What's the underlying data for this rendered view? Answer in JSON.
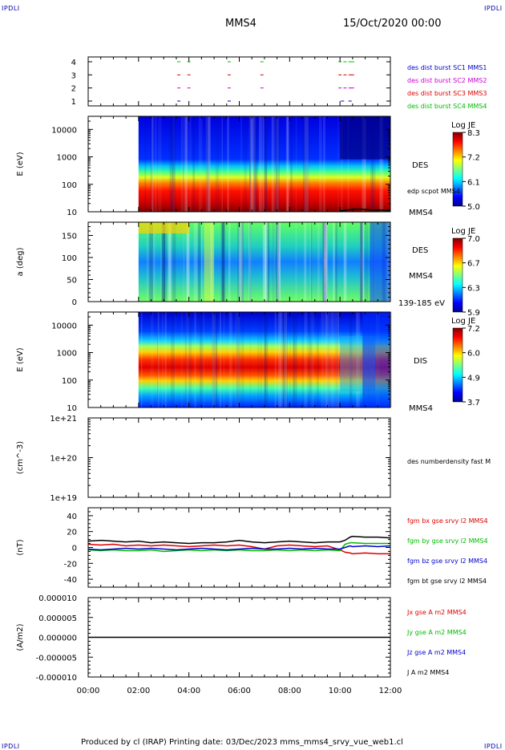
{
  "header": {
    "corner_label": "IPDLI",
    "spacecraft": "MMS4",
    "datetime": "15/Oct/2020 00:00"
  },
  "footer": {
    "text": "Produced by cl (IRAP)   Printing date: 03/Dec/2023   mms_mms4_srvy_vue_web1.cl"
  },
  "colors": {
    "blue": "#0000cc",
    "magenta": "#cc00cc",
    "red": "#dd0000",
    "green": "#00bb00",
    "black": "#000000"
  },
  "chart_data": [
    {
      "type": "scatter",
      "panel": "burst",
      "yticks": [
        "4",
        "3",
        "2",
        "1"
      ],
      "legend": [
        {
          "text": "des dist burst SC1 MMS1",
          "color": "#0000cc"
        },
        {
          "text": "des dist burst SC2 MMS2",
          "color": "#cc00cc"
        },
        {
          "text": "des dist burst SC3 MMS3",
          "color": "#dd0000"
        },
        {
          "text": "des dist burst SC4 MMS4",
          "color": "#00bb00"
        }
      ],
      "series": [
        {
          "level": 4,
          "color": "#00bb00",
          "x": [
            3.6,
            4.0,
            5.6,
            6.9,
            10.0,
            10.2,
            10.4,
            10.5
          ]
        },
        {
          "level": 3,
          "color": "#dd0000",
          "x": [
            3.6,
            4.0,
            5.6,
            6.9,
            10.0,
            10.2,
            10.4,
            10.5
          ]
        },
        {
          "level": 2,
          "color": "#cc00cc",
          "x": [
            3.6,
            4.0,
            5.6,
            6.9,
            10.0,
            10.2,
            10.4,
            10.5
          ]
        },
        {
          "level": 1,
          "color": "#0000cc",
          "x": [
            3.6,
            5.6,
            10.1,
            10.4
          ]
        }
      ]
    },
    {
      "type": "heatmap",
      "panel": "des-energy",
      "ylabel": "E (eV)",
      "yscale": "log",
      "ylim": [
        10,
        30000
      ],
      "yticks": [
        "10000",
        "1000",
        "100",
        "10"
      ],
      "colorbar": {
        "title": "Log JE",
        "ticks": [
          "8.3",
          "7.2",
          "6.1",
          "5.0"
        ]
      },
      "instrument_label": "DES",
      "extra_label": "edp scpot MMS4",
      "sc_label": "MMS4",
      "data_start": 2.0
    },
    {
      "type": "heatmap",
      "panel": "pitch-angle",
      "ylabel": "a (deg)",
      "ylim": [
        0,
        180
      ],
      "yticks": [
        "150",
        "100",
        "50",
        "0"
      ],
      "colorbar": {
        "title": "Log JE",
        "ticks": [
          "7.0",
          "6.7",
          "6.3",
          "5.9"
        ]
      },
      "instrument_label": "DES",
      "sc_label": "MMS4",
      "energy_label": "139-185 eV",
      "data_start": 2.0
    },
    {
      "type": "heatmap",
      "panel": "dis-energy",
      "ylabel": "E (eV)",
      "yscale": "log",
      "ylim": [
        10,
        30000
      ],
      "yticks": [
        "10000",
        "1000",
        "100",
        "10"
      ],
      "colorbar": {
        "title": "Log JE",
        "ticks": [
          "7.2",
          "6.0",
          "4.9",
          "3.7"
        ]
      },
      "instrument_label": "DIS",
      "sc_label": "MMS4",
      "data_start": 2.0
    },
    {
      "type": "line",
      "panel": "density",
      "ylabel": "(cm^-3)",
      "yscale": "log",
      "ylim": [
        1e+19,
        1e+21
      ],
      "yticks": [
        "1e+21",
        "1e+20",
        "1e+19"
      ],
      "legend": [
        {
          "text": "des numberdensity fast M",
          "color": "#000000"
        }
      ],
      "series": []
    },
    {
      "type": "line",
      "panel": "magnetic-field",
      "ylabel": "(nT)",
      "ylim": [
        -50,
        50
      ],
      "yticks": [
        "40",
        "20",
        "0",
        "-20",
        "-40"
      ],
      "legend": [
        {
          "text": "fgm bx gse srvy l2 MMS4",
          "color": "#dd0000"
        },
        {
          "text": "fgm by gse srvy l2 MMS4",
          "color": "#00bb00"
        },
        {
          "text": "fgm bz gse srvy l2 MMS4",
          "color": "#0000cc"
        },
        {
          "text": "fgm bt gse srvy l2 MMS4",
          "color": "#000000"
        }
      ],
      "x": [
        0,
        0.5,
        1,
        1.5,
        2,
        2.5,
        3,
        3.5,
        4,
        4.5,
        5,
        5.5,
        6,
        6.5,
        7,
        7.5,
        8,
        8.5,
        9,
        9.5,
        10,
        10.2,
        10.4,
        10.5,
        11,
        11.5,
        12
      ],
      "series": [
        {
          "name": "bx",
          "color": "#dd0000",
          "values": [
            4,
            3,
            4,
            2,
            3,
            2,
            3,
            2,
            1,
            2,
            3,
            2,
            3,
            1,
            -2,
            2,
            3,
            2,
            1,
            2,
            -3,
            -6,
            -7,
            -8,
            -7,
            -8,
            -8
          ]
        },
        {
          "name": "by",
          "color": "#00bb00",
          "values": [
            -3,
            -4,
            -3,
            -4,
            -4,
            -3,
            -5,
            -4,
            -3,
            -4,
            -3,
            -4,
            -3,
            -4,
            -4,
            -3,
            -4,
            -3,
            -4,
            -3,
            -4,
            4,
            6,
            6,
            5,
            5,
            5
          ]
        },
        {
          "name": "bz",
          "color": "#0000cc",
          "values": [
            -2,
            -3,
            -2,
            -1,
            -2,
            -1,
            -2,
            -3,
            -2,
            -1,
            -2,
            -3,
            -2,
            -1,
            -2,
            -2,
            -1,
            -2,
            -1,
            -2,
            -2,
            0,
            2,
            1,
            2,
            1,
            2
          ]
        },
        {
          "name": "bt",
          "color": "#000000",
          "values": [
            8,
            9,
            8,
            7,
            8,
            6,
            7,
            6,
            5,
            6,
            6,
            7,
            9,
            7,
            6,
            7,
            8,
            7,
            6,
            7,
            7,
            9,
            13,
            14,
            13,
            13,
            12
          ]
        }
      ]
    },
    {
      "type": "line",
      "panel": "current-density",
      "ylabel": "(A/m2)",
      "ylim": [
        -1e-05,
        1e-05
      ],
      "yticks": [
        "0.000010",
        "0.000005",
        "0.000000",
        "-0.000005",
        "-0.000010"
      ],
      "legend": [
        {
          "text": "Jx gse A m2 MMS4",
          "color": "#dd0000"
        },
        {
          "text": "Jy gse A m2 MMS4",
          "color": "#00bb00"
        },
        {
          "text": "Jz gse A m2 MMS4",
          "color": "#0000cc"
        },
        {
          "text": "J A m2 MMS4",
          "color": "#000000"
        }
      ],
      "x": [
        0,
        12
      ],
      "series": [
        {
          "name": "J",
          "color": "#000000",
          "values": [
            0,
            0
          ]
        }
      ]
    }
  ],
  "xaxis": {
    "ticks": [
      "00:00",
      "02:00",
      "04:00",
      "06:00",
      "08:00",
      "10:00",
      "12:00"
    ],
    "values": [
      0,
      2,
      4,
      6,
      8,
      10,
      12
    ],
    "range": [
      0,
      12
    ]
  }
}
